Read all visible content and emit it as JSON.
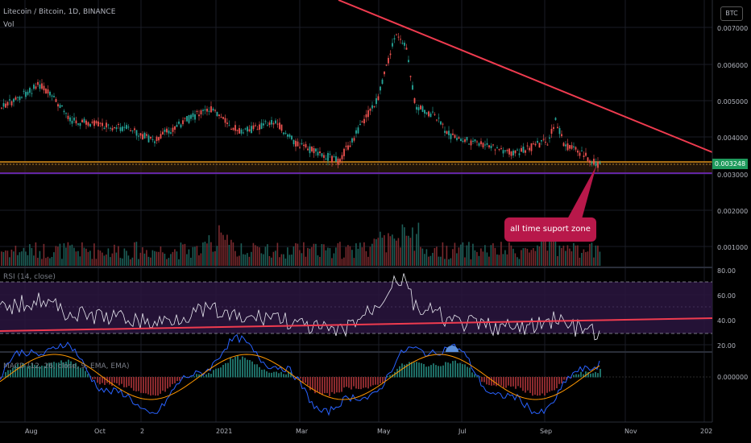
{
  "header": {
    "symbol_title": "Litecoin / Bitcoin, 1D, BINANCE",
    "vol_label": "Vol",
    "currency_badge": "BTC"
  },
  "price_axis": {
    "ticks": [
      "0.007000",
      "0.006000",
      "0.005000",
      "0.004000",
      "0.003000",
      "0.002000",
      "0.001000"
    ],
    "current_price": "0.003248"
  },
  "annotation": {
    "callout_text": "all time suport zone"
  },
  "rsi": {
    "label": "RSI (14, close)",
    "ticks": [
      "80.00",
      "60.00",
      "40.00",
      "20.00"
    ]
  },
  "macd": {
    "label": "MACD (12, 26, close, 9, EMA, EMA)",
    "tick": "0.000000"
  },
  "time_axis": {
    "labels": [
      "Aug",
      "Oct",
      "2",
      "2021",
      "Mar",
      "May",
      "Jul",
      "Sep",
      "Nov",
      "202"
    ]
  },
  "colors": {
    "up": "#26a69a",
    "down": "#ef5350",
    "trendline": "#ef3b4f",
    "support_zone": "#d98f1a",
    "rsi_band": "#2a1540",
    "macd_line": "#2962ff",
    "signal_line": "#ff9800",
    "callout": "#b8184a",
    "price_tag": "#1e9a5c"
  }
}
